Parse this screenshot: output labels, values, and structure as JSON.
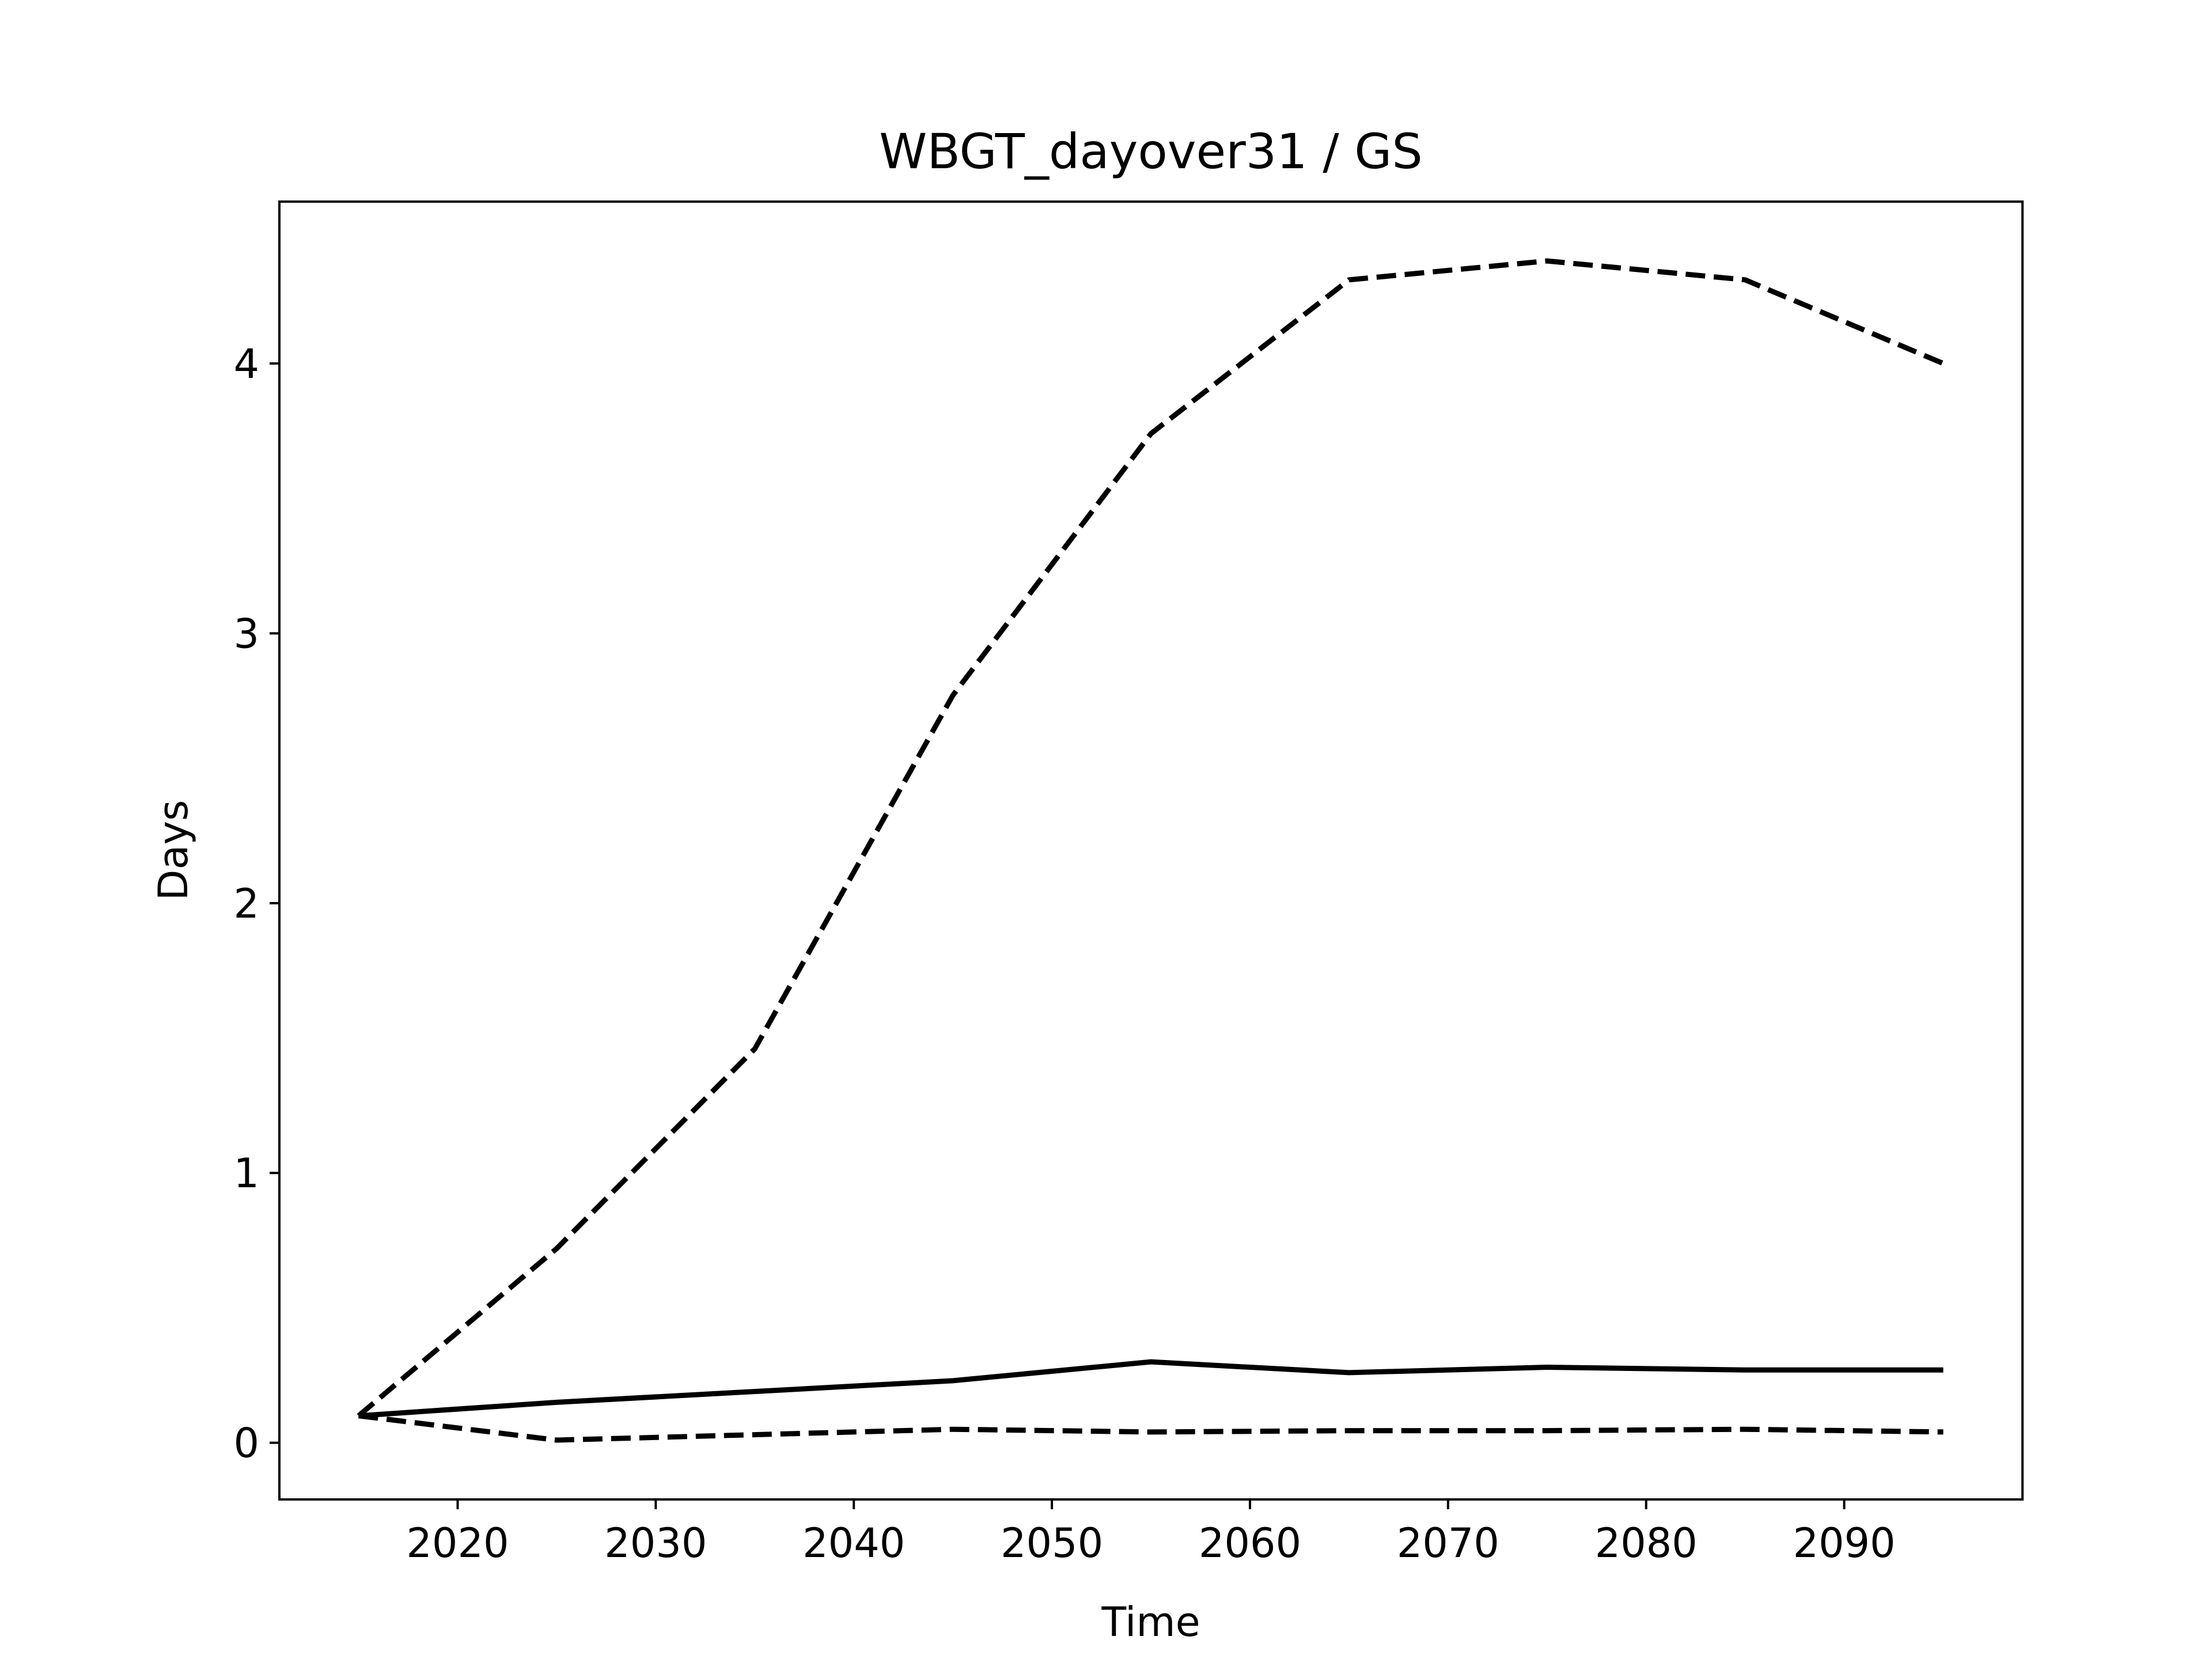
{
  "chart_data": {
    "type": "line",
    "title": "WBGT_dayover31 / GS",
    "xlabel": "Time",
    "ylabel": "Days",
    "xlim": [
      2011,
      2099
    ],
    "ylim": [
      -0.21,
      4.6
    ],
    "xticks": [
      2020,
      2030,
      2040,
      2050,
      2060,
      2070,
      2080,
      2090
    ],
    "yticks": [
      0,
      1,
      2,
      3,
      4
    ],
    "grid": false,
    "legend": "none",
    "x": [
      2015,
      2025,
      2035,
      2045,
      2055,
      2065,
      2075,
      2085,
      2095
    ],
    "series": [
      {
        "style": "solid",
        "color": "#000000",
        "values": [
          0.1,
          0.15,
          0.19,
          0.23,
          0.3,
          0.26,
          0.28,
          0.27,
          0.27
        ]
      },
      {
        "style": "dashed",
        "color": "#000000",
        "values": [
          0.1,
          0.72,
          1.46,
          2.77,
          3.74,
          4.31,
          4.38,
          4.31,
          4.0
        ]
      },
      {
        "style": "dashed",
        "color": "#000000",
        "values": [
          0.1,
          0.01,
          0.03,
          0.05,
          0.04,
          0.045,
          0.045,
          0.05,
          0.04
        ]
      }
    ]
  }
}
